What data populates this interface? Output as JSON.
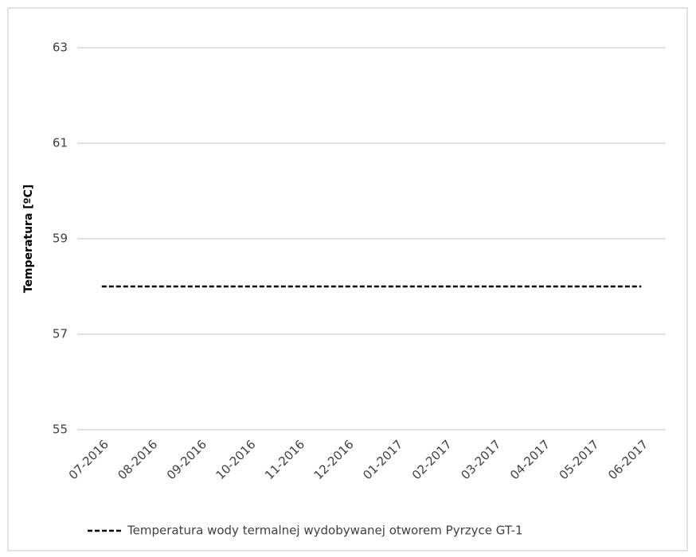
{
  "chart_data": {
    "type": "line",
    "y_label": "Temperatura [ºC]",
    "categories": [
      "07-2016",
      "08-2016",
      "09-2016",
      "10-2016",
      "11-2016",
      "12-2016",
      "01-2017",
      "02-2017",
      "03-2017",
      "04-2017",
      "05-2017",
      "06-2017"
    ],
    "series": [
      {
        "name": "Temperatura wody termalnej wydobywanej otworem Pyrzyce GT-1",
        "color": "#000000",
        "line_style": "dashed",
        "values": [
          58,
          58,
          58,
          58,
          58,
          58,
          58,
          58,
          58,
          58,
          58,
          58
        ]
      }
    ],
    "ylim": [
      55,
      63
    ],
    "yticks": [
      55,
      57,
      59,
      61,
      63
    ],
    "grid": true,
    "legend": "bottom"
  }
}
